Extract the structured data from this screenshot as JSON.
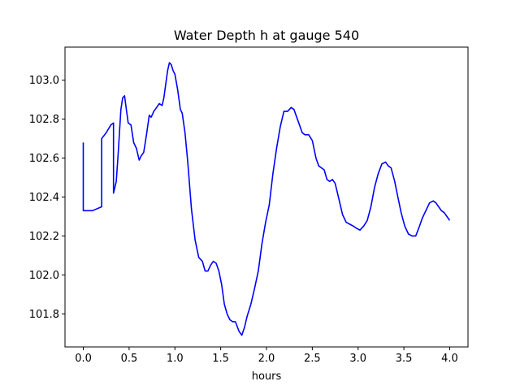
{
  "chart_data": {
    "type": "line",
    "title": "Water Depth h at gauge 540",
    "xlabel": "hours",
    "ylabel": "",
    "xlim": [
      -0.2,
      4.2
    ],
    "ylim": [
      101.63,
      103.17
    ],
    "xticks": [
      0.0,
      0.5,
      1.0,
      1.5,
      2.0,
      2.5,
      3.0,
      3.5,
      4.0
    ],
    "xtick_labels": [
      "0.0",
      "0.5",
      "1.0",
      "1.5",
      "2.0",
      "2.5",
      "3.0",
      "3.5",
      "4.0"
    ],
    "yticks": [
      101.8,
      102.0,
      102.2,
      102.4,
      102.6,
      102.8,
      103.0
    ],
    "ytick_labels": [
      "101.8",
      "102.0",
      "102.2",
      "102.4",
      "102.6",
      "102.8",
      "103.0"
    ],
    "grid": false,
    "line_color": "#0000ff",
    "series": [
      {
        "x": [
          0.0,
          0.0,
          0.1,
          0.2,
          0.2,
          0.25,
          0.3,
          0.33,
          0.33,
          0.36,
          0.38,
          0.41,
          0.43,
          0.45,
          0.47,
          0.49,
          0.52,
          0.55,
          0.58,
          0.61,
          0.63,
          0.66,
          0.69,
          0.72,
          0.74,
          0.77,
          0.8,
          0.83,
          0.86,
          0.88,
          0.9,
          0.92,
          0.94,
          0.96,
          0.98,
          1.0,
          1.03,
          1.06,
          1.08,
          1.11,
          1.14,
          1.18,
          1.22,
          1.26,
          1.3,
          1.33,
          1.36,
          1.39,
          1.42,
          1.45,
          1.48,
          1.51,
          1.54,
          1.57,
          1.6,
          1.63,
          1.66,
          1.7,
          1.73,
          1.76,
          1.79,
          1.81,
          1.83,
          1.87,
          1.91,
          1.95,
          1.99,
          2.03,
          2.07,
          2.11,
          2.15,
          2.19,
          2.23,
          2.27,
          2.3,
          2.33,
          2.36,
          2.39,
          2.42,
          2.46,
          2.5,
          2.54,
          2.57,
          2.6,
          2.63,
          2.66,
          2.69,
          2.72,
          2.75,
          2.79,
          2.83,
          2.87,
          2.91,
          2.95,
          2.98,
          3.02,
          3.06,
          3.1,
          3.14,
          3.18,
          3.22,
          3.26,
          3.3,
          3.33,
          3.36,
          3.4,
          3.43,
          3.47,
          3.51,
          3.55,
          3.59,
          3.63,
          3.67,
          3.7,
          3.74,
          3.78,
          3.82,
          3.85,
          3.88,
          3.91,
          3.94,
          3.97,
          4.0
        ],
        "y": [
          102.68,
          102.33,
          102.33,
          102.35,
          102.7,
          102.73,
          102.77,
          102.78,
          102.42,
          102.48,
          102.62,
          102.85,
          102.91,
          102.92,
          102.85,
          102.78,
          102.77,
          102.68,
          102.65,
          102.59,
          102.61,
          102.63,
          102.72,
          102.82,
          102.81,
          102.84,
          102.86,
          102.88,
          102.87,
          102.91,
          102.98,
          103.05,
          103.09,
          103.08,
          103.05,
          103.03,
          102.95,
          102.85,
          102.83,
          102.73,
          102.58,
          102.34,
          102.18,
          102.09,
          102.07,
          102.02,
          102.02,
          102.05,
          102.07,
          102.06,
          102.02,
          101.95,
          101.85,
          101.8,
          101.77,
          101.76,
          101.76,
          101.71,
          101.69,
          101.73,
          101.79,
          101.82,
          101.85,
          101.93,
          102.02,
          102.16,
          102.27,
          102.36,
          102.52,
          102.65,
          102.76,
          102.84,
          102.84,
          102.86,
          102.85,
          102.81,
          102.77,
          102.73,
          102.72,
          102.72,
          102.69,
          102.6,
          102.56,
          102.55,
          102.54,
          102.49,
          102.48,
          102.49,
          102.47,
          102.39,
          102.31,
          102.27,
          102.26,
          102.25,
          102.24,
          102.23,
          102.25,
          102.28,
          102.35,
          102.45,
          102.52,
          102.57,
          102.58,
          102.56,
          102.55,
          102.48,
          102.41,
          102.32,
          102.25,
          102.21,
          102.2,
          102.2,
          102.25,
          102.29,
          102.33,
          102.37,
          102.38,
          102.37,
          102.35,
          102.33,
          102.32,
          102.3,
          102.28
        ]
      }
    ]
  }
}
